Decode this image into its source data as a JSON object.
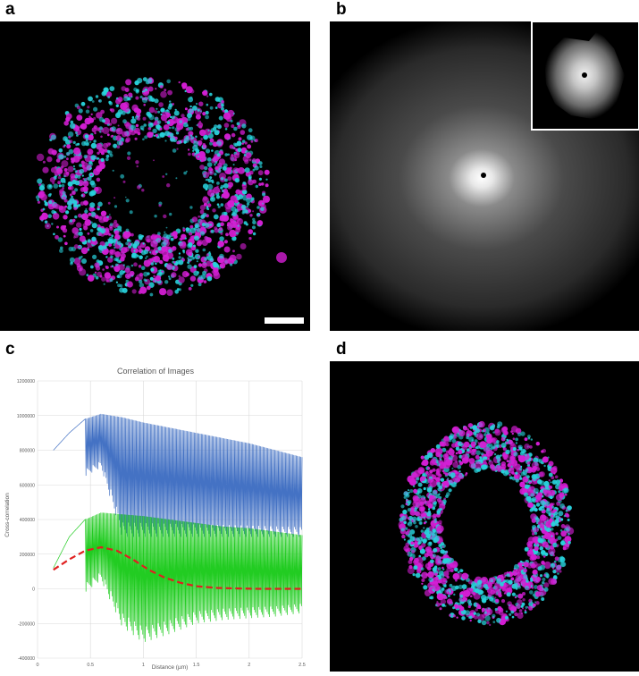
{
  "panels": {
    "a": {
      "label": "a"
    },
    "b": {
      "label": "b"
    },
    "c": {
      "label": "c"
    },
    "d": {
      "label": "d"
    }
  },
  "colors": {
    "magenta": "#d41ed4",
    "cyan": "#28d2dc",
    "blue_series": "#4472c4",
    "green_series": "#22cc22",
    "red_fit": "#e02020",
    "grid": "#d9d9d9"
  },
  "chart_data": {
    "type": "line",
    "title": "Correlation of Images",
    "xlabel": "Distance (µm)",
    "ylabel": "Cross-correlation",
    "xlim": [
      0,
      2.5
    ],
    "ylim": [
      -400000,
      1200000
    ],
    "x_ticks": [
      "0",
      "0.5",
      "1",
      "1.5",
      "2",
      "2.5"
    ],
    "y_ticks": [
      "1200000",
      "1000000",
      "800000",
      "600000",
      "400000",
      "200000",
      "0",
      "-200000",
      "-400000"
    ],
    "grid": true,
    "series": [
      {
        "x": [
          0.15,
          0.3,
          0.45,
          0.6,
          0.8,
          1.0,
          1.25,
          1.5,
          1.75,
          2.0,
          2.25,
          2.5
        ],
        "y_upper": [
          800000,
          900000,
          980000,
          1010000,
          990000,
          960000,
          930000,
          900000,
          870000,
          840000,
          800000,
          760000
        ],
        "y_lower": [
          800000,
          900000,
          650000,
          700000,
          300000,
          300000,
          300000,
          300000,
          300000,
          300000,
          300000,
          300000
        ]
      },
      {
        "x": [
          0.15,
          0.3,
          0.45,
          0.6,
          0.8,
          1.0,
          1.25,
          1.5,
          1.75,
          2.0,
          2.25,
          2.5
        ],
        "y_upper": [
          120000,
          300000,
          400000,
          440000,
          430000,
          420000,
          400000,
          380000,
          360000,
          350000,
          330000,
          310000
        ],
        "y_lower": [
          120000,
          300000,
          -20000,
          50000,
          -220000,
          -310000,
          -260000,
          -200000,
          -180000,
          -170000,
          -160000,
          -140000
        ]
      },
      {
        "x": [
          0.15,
          0.3,
          0.45,
          0.6,
          0.75,
          0.9,
          1.05,
          1.2,
          1.35,
          1.5,
          1.7,
          1.9,
          2.1,
          2.3,
          2.5
        ],
        "y": [
          110000,
          170000,
          220000,
          240000,
          220000,
          170000,
          110000,
          65000,
          35000,
          15000,
          5000,
          2000,
          0,
          0,
          0
        ]
      }
    ]
  }
}
